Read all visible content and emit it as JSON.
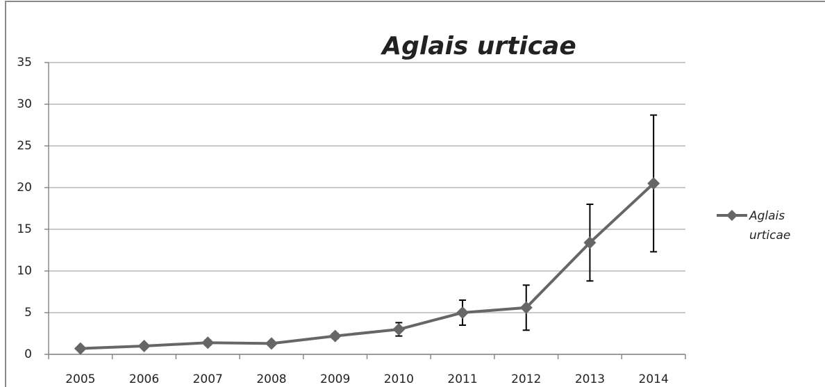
{
  "chart_data": {
    "type": "line",
    "title": "Aglais urticae",
    "categories": [
      "2005",
      "2006",
      "2007",
      "2008",
      "2009",
      "2010",
      "2011",
      "2012",
      "2013",
      "2014"
    ],
    "series": [
      {
        "name": "Aglais urticae",
        "color": "#666666",
        "values": [
          0.7,
          1.0,
          1.4,
          1.3,
          2.2,
          3.0,
          5.0,
          5.6,
          13.4,
          20.5
        ],
        "errors": [
          0.2,
          0.2,
          0.3,
          0.2,
          0.3,
          0.8,
          1.5,
          2.7,
          4.6,
          8.2
        ]
      }
    ],
    "ylim": [
      0,
      35
    ],
    "yticks": [
      0,
      5,
      10,
      15,
      20,
      25,
      30,
      35
    ],
    "grid": true,
    "legend": "right"
  }
}
